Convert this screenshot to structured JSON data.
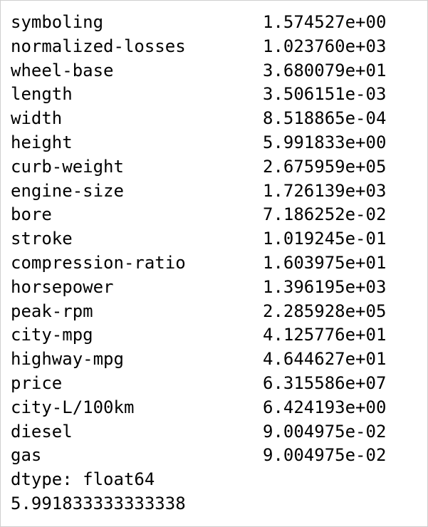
{
  "series": {
    "rows": [
      {
        "name": "symboling",
        "value": "1.574527e+00"
      },
      {
        "name": "normalized-losses",
        "value": "1.023760e+03"
      },
      {
        "name": "wheel-base",
        "value": "3.680079e+01"
      },
      {
        "name": "length",
        "value": "3.506151e-03"
      },
      {
        "name": "width",
        "value": "8.518865e-04"
      },
      {
        "name": "height",
        "value": "5.991833e+00"
      },
      {
        "name": "curb-weight",
        "value": "2.675959e+05"
      },
      {
        "name": "engine-size",
        "value": "1.726139e+03"
      },
      {
        "name": "bore",
        "value": "7.186252e-02"
      },
      {
        "name": "stroke",
        "value": "1.019245e-01"
      },
      {
        "name": "compression-ratio",
        "value": "1.603975e+01"
      },
      {
        "name": "horsepower",
        "value": "1.396195e+03"
      },
      {
        "name": "peak-rpm",
        "value": "2.285928e+05"
      },
      {
        "name": "city-mpg",
        "value": "4.125776e+01"
      },
      {
        "name": "highway-mpg",
        "value": "4.644627e+01"
      },
      {
        "name": "price",
        "value": "6.315586e+07"
      },
      {
        "name": "city-L/100km",
        "value": "6.424193e+00"
      },
      {
        "name": "diesel",
        "value": "9.004975e-02"
      },
      {
        "name": "gas",
        "value": "9.004975e-02"
      }
    ],
    "dtype_line": "dtype: float64"
  },
  "result_line": "5.991833333333338"
}
